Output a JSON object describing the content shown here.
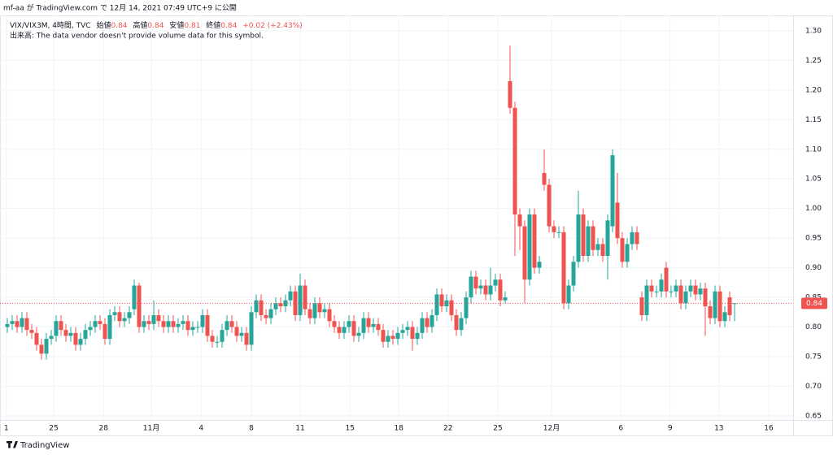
{
  "published": "mf-aa が TradingView.com で 12月 14, 2021 07:49 UTC+9 に公開",
  "brand": "TradingView",
  "chart_data": {
    "type": "candlestick",
    "title": "VIX/VIX3M, 4時間, TVC",
    "legend": [
      {
        "label": "始値",
        "value": 0.84
      },
      {
        "label": "高値",
        "value": 0.84
      },
      {
        "label": "安値",
        "value": 0.81
      },
      {
        "label": "終値",
        "value": 0.84
      }
    ],
    "change": "+0.02 (+2.43%)",
    "volume_note": "出来高: The data vendor doesn't provide volume data for this symbol.",
    "up_color": "#26a69a",
    "down_color": "#ef5350",
    "grid": true,
    "last_price": 0.84,
    "ylim": [
      0.643,
      1.352
    ],
    "yticks": [
      0.65,
      {
        "value": 0.7,
        "label": "0.70"
      },
      0.75,
      {
        "value": 0.8,
        "label": "0.80"
      },
      0.85,
      {
        "value": 0.9,
        "label": "0.90"
      },
      0.95,
      {
        "value": 1,
        "label": "1.00"
      },
      1.05,
      {
        "value": 1.1,
        "label": "1.10"
      },
      1.15,
      {
        "value": 1.2,
        "label": "1.20"
      },
      1.25,
      {
        "value": 1.3,
        "label": "1.30"
      }
    ],
    "xlim": [
      -1.5,
      161
    ],
    "xticks": [
      {
        "value": -0.2,
        "label": "1"
      },
      {
        "value": 9.5,
        "label": "25"
      },
      {
        "value": 19.7,
        "label": "28"
      },
      {
        "value": 29.5,
        "label": "11月"
      },
      {
        "value": 39.7,
        "label": "4"
      },
      {
        "value": 50,
        "label": "8"
      },
      {
        "value": 60,
        "label": "11"
      },
      {
        "value": 70.2,
        "label": "15"
      },
      {
        "value": 80.2,
        "label": "18"
      },
      {
        "value": 90.3,
        "label": "22"
      },
      {
        "value": 100.5,
        "label": "25"
      },
      {
        "value": 111.5,
        "label": "12月"
      },
      {
        "value": 125.7,
        "label": "6"
      },
      {
        "value": 135.8,
        "label": "9"
      },
      {
        "value": 145.8,
        "label": "13"
      },
      {
        "value": 156,
        "label": "16"
      }
    ],
    "open": [
      0.8,
      0.805,
      0.81,
      0.8,
      0.815,
      0.795,
      0.79,
      0.77,
      0.755,
      0.78,
      0.785,
      0.81,
      0.795,
      0.785,
      0.79,
      0.77,
      0.78,
      0.795,
      0.8,
      0.81,
      0.805,
      0.78,
      0.82,
      0.825,
      0.81,
      0.815,
      0.83,
      0.87,
      0.8,
      0.81,
      0.805,
      0.82,
      0.81,
      0.8,
      0.81,
      0.8,
      0.805,
      0.81,
      0.795,
      0.8,
      0.8,
      0.82,
      0.785,
      0.775,
      0.775,
      0.795,
      0.81,
      0.8,
      0.785,
      0.79,
      0.77,
      0.825,
      0.845,
      0.82,
      0.815,
      0.83,
      0.84,
      0.835,
      0.845,
      0.86,
      0.82,
      0.87,
      0.83,
      0.815,
      0.84,
      0.825,
      0.83,
      0.81,
      0.8,
      0.79,
      0.8,
      0.81,
      0.785,
      0.79,
      0.815,
      0.8,
      0.805,
      0.795,
      0.775,
      0.785,
      0.78,
      0.79,
      0.795,
      0.8,
      0.78,
      0.79,
      0.815,
      0.8,
      0.82,
      0.855,
      0.835,
      0.845,
      0.82,
      0.795,
      0.815,
      0.85,
      0.885,
      0.865,
      0.87,
      0.855,
      0.87,
      0.88,
      0.845,
      1.215,
      1.17,
      0.99,
      0.97,
      0.88,
      0.99,
      0.9,
      1.06,
      1.04,
      0.97,
      0.96,
      0.96,
      0.84,
      0.87,
      0.91,
      0.99,
      0.92,
      0.97,
      0.93,
      0.94,
      0.92,
      0.97,
      1.01,
      0.95,
      0.91,
      0.94,
      0.96,
      0.85,
      0.82,
      0.87,
      0.86,
      0.86,
      0.9,
      0.86,
      0.86,
      0.87,
      0.84,
      0.86,
      0.87,
      0.855,
      0.865,
      0.835,
      0.815,
      0.86,
      0.81,
      0.85,
      0.84
    ],
    "high": [
      0.815,
      0.82,
      0.82,
      0.825,
      0.825,
      0.805,
      0.8,
      0.78,
      0.79,
      0.795,
      0.82,
      0.82,
      0.805,
      0.8,
      0.8,
      0.79,
      0.805,
      0.81,
      0.82,
      0.82,
      0.815,
      0.83,
      0.835,
      0.835,
      0.825,
      0.835,
      0.88,
      0.875,
      0.82,
      0.82,
      0.845,
      0.83,
      0.82,
      0.82,
      0.82,
      0.815,
      0.82,
      0.82,
      0.81,
      0.81,
      0.83,
      0.83,
      0.795,
      0.785,
      0.805,
      0.82,
      0.82,
      0.81,
      0.8,
      0.8,
      0.835,
      0.855,
      0.855,
      0.83,
      0.84,
      0.85,
      0.85,
      0.855,
      0.87,
      0.87,
      0.89,
      0.88,
      0.84,
      0.85,
      0.85,
      0.84,
      0.84,
      0.82,
      0.81,
      0.81,
      0.82,
      0.82,
      0.8,
      0.825,
      0.825,
      0.815,
      0.815,
      0.805,
      0.795,
      0.795,
      0.8,
      0.805,
      0.81,
      0.81,
      0.8,
      0.825,
      0.825,
      0.83,
      0.865,
      0.865,
      0.855,
      0.855,
      0.83,
      0.825,
      0.86,
      0.895,
      0.895,
      0.88,
      0.88,
      0.9,
      0.89,
      0.89,
      0.86,
      1.275,
      1.18,
      1.0,
      0.98,
      1.0,
      1.0,
      0.92,
      1.1,
      1.05,
      0.98,
      0.97,
      0.97,
      0.88,
      0.92,
      1.03,
      1.0,
      0.98,
      0.98,
      0.95,
      0.95,
      0.99,
      1.1,
      1.06,
      0.96,
      0.95,
      0.97,
      0.97,
      0.86,
      0.88,
      0.88,
      0.87,
      0.89,
      0.91,
      0.87,
      0.88,
      0.88,
      0.87,
      0.88,
      0.88,
      0.875,
      0.875,
      0.845,
      0.87,
      0.87,
      0.835,
      0.86,
      0.84
    ],
    "low": [
      0.79,
      0.795,
      0.79,
      0.79,
      0.785,
      0.78,
      0.76,
      0.745,
      0.745,
      0.77,
      0.775,
      0.785,
      0.775,
      0.775,
      0.76,
      0.76,
      0.77,
      0.785,
      0.79,
      0.795,
      0.77,
      0.77,
      0.81,
      0.8,
      0.8,
      0.805,
      0.82,
      0.79,
      0.79,
      0.795,
      0.795,
      0.8,
      0.79,
      0.79,
      0.79,
      0.79,
      0.795,
      0.785,
      0.785,
      0.79,
      0.79,
      0.775,
      0.765,
      0.765,
      0.765,
      0.785,
      0.79,
      0.775,
      0.775,
      0.76,
      0.76,
      0.815,
      0.81,
      0.805,
      0.805,
      0.82,
      0.825,
      0.825,
      0.835,
      0.81,
      0.81,
      0.82,
      0.805,
      0.805,
      0.815,
      0.815,
      0.8,
      0.79,
      0.78,
      0.78,
      0.79,
      0.775,
      0.775,
      0.78,
      0.79,
      0.79,
      0.785,
      0.765,
      0.765,
      0.77,
      0.77,
      0.78,
      0.785,
      0.76,
      0.77,
      0.78,
      0.79,
      0.79,
      0.81,
      0.825,
      0.825,
      0.81,
      0.785,
      0.785,
      0.805,
      0.84,
      0.855,
      0.855,
      0.845,
      0.845,
      0.86,
      0.835,
      0.84,
      1.16,
      0.92,
      0.93,
      0.84,
      0.87,
      0.89,
      0.89,
      1.03,
      0.96,
      0.95,
      0.95,
      0.83,
      0.83,
      0.86,
      0.9,
      0.91,
      0.91,
      0.92,
      0.92,
      0.91,
      0.88,
      0.96,
      0.94,
      0.9,
      0.9,
      0.93,
      0.93,
      0.81,
      0.81,
      0.85,
      0.85,
      0.85,
      0.85,
      0.85,
      0.85,
      0.83,
      0.83,
      0.85,
      0.845,
      0.845,
      0.785,
      0.805,
      0.805,
      0.8,
      0.8,
      0.81,
      0.81
    ],
    "close": [
      0.805,
      0.81,
      0.8,
      0.815,
      0.795,
      0.79,
      0.77,
      0.755,
      0.78,
      0.785,
      0.81,
      0.795,
      0.785,
      0.79,
      0.77,
      0.78,
      0.795,
      0.8,
      0.81,
      0.805,
      0.78,
      0.82,
      0.825,
      0.81,
      0.815,
      0.825,
      0.87,
      0.8,
      0.81,
      0.805,
      0.82,
      0.81,
      0.8,
      0.81,
      0.8,
      0.805,
      0.81,
      0.795,
      0.8,
      0.8,
      0.82,
      0.785,
      0.775,
      0.775,
      0.795,
      0.81,
      0.8,
      0.785,
      0.79,
      0.77,
      0.825,
      0.845,
      0.82,
      0.815,
      0.83,
      0.84,
      0.835,
      0.845,
      0.86,
      0.82,
      0.87,
      0.83,
      0.815,
      0.84,
      0.825,
      0.83,
      0.81,
      0.8,
      0.79,
      0.8,
      0.81,
      0.785,
      0.79,
      0.815,
      0.8,
      0.805,
      0.795,
      0.775,
      0.785,
      0.78,
      0.79,
      0.795,
      0.8,
      0.78,
      0.79,
      0.815,
      0.8,
      0.82,
      0.855,
      0.835,
      0.845,
      0.82,
      0.795,
      0.815,
      0.85,
      0.885,
      0.865,
      0.87,
      0.855,
      0.87,
      0.88,
      0.845,
      0.85,
      1.17,
      0.99,
      0.97,
      0.88,
      0.99,
      0.9,
      0.91,
      1.04,
      0.97,
      0.96,
      0.96,
      0.84,
      0.87,
      0.91,
      0.99,
      0.92,
      0.97,
      0.93,
      0.94,
      0.92,
      0.98,
      1.09,
      0.95,
      0.91,
      0.94,
      0.96,
      0.94,
      0.82,
      0.87,
      0.86,
      0.86,
      0.88,
      0.86,
      0.86,
      0.87,
      0.84,
      0.86,
      0.87,
      0.855,
      0.865,
      0.835,
      0.815,
      0.86,
      0.81,
      0.825,
      0.82,
      0.84
    ]
  }
}
